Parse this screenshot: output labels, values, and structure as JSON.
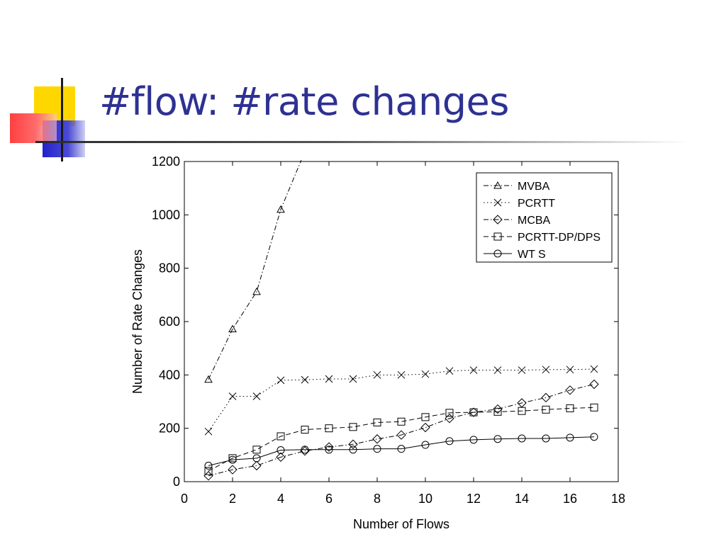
{
  "slide": {
    "title": "#flow: #rate changes",
    "colors": {
      "title": "#2e3192",
      "deco_yellow": "#ffd700",
      "deco_blue": "#3333cc",
      "deco_red": "#ff3333"
    }
  },
  "chart_data": {
    "type": "line",
    "title": "",
    "xlabel": "Number of Flows",
    "ylabel": "Number of Rate Changes",
    "xlim": [
      0,
      18
    ],
    "ylim": [
      0,
      1200
    ],
    "xticks": [
      0,
      2,
      4,
      6,
      8,
      10,
      12,
      14,
      16,
      18
    ],
    "yticks": [
      0,
      200,
      400,
      600,
      800,
      1000,
      1200
    ],
    "grid": false,
    "legend_position": "top-right",
    "series": [
      {
        "name": "MVBA",
        "marker": "triangle",
        "dash": "dashdot",
        "x": [
          1,
          2,
          3,
          4,
          4.85
        ],
        "y": [
          383,
          572,
          712,
          1020,
          1205
        ]
      },
      {
        "name": "PCRTT",
        "marker": "x",
        "dash": "dotted",
        "x": [
          1,
          2,
          3,
          4,
          5,
          6,
          7,
          8,
          9,
          10,
          11,
          12,
          13,
          14,
          15,
          16,
          17
        ],
        "y": [
          188,
          320,
          320,
          380,
          382,
          385,
          385,
          400,
          400,
          403,
          415,
          418,
          418,
          418,
          420,
          420,
          422
        ]
      },
      {
        "name": "MCBA",
        "marker": "diamond",
        "dash": "dashdot",
        "x": [
          1,
          2,
          3,
          4,
          5,
          6,
          7,
          8,
          9,
          10,
          11,
          12,
          13,
          14,
          15,
          16,
          17
        ],
        "y": [
          22,
          45,
          60,
          92,
          115,
          130,
          140,
          160,
          175,
          203,
          237,
          260,
          272,
          295,
          315,
          343,
          365
        ]
      },
      {
        "name": "PCRTT-DP/DPS",
        "marker": "square",
        "dash": "dashed",
        "x": [
          1,
          2,
          3,
          4,
          5,
          6,
          7,
          8,
          9,
          10,
          11,
          12,
          13,
          14,
          15,
          16,
          17
        ],
        "y": [
          40,
          88,
          120,
          170,
          195,
          200,
          205,
          222,
          225,
          242,
          258,
          260,
          262,
          265,
          270,
          275,
          278
        ]
      },
      {
        "name": "WT S",
        "marker": "circle",
        "dash": "solid",
        "x": [
          1,
          2,
          3,
          4,
          5,
          6,
          7,
          8,
          9,
          10,
          11,
          12,
          13,
          14,
          15,
          16,
          17
        ],
        "y": [
          60,
          82,
          88,
          118,
          120,
          120,
          120,
          123,
          123,
          138,
          152,
          157,
          160,
          162,
          162,
          165,
          168
        ]
      }
    ]
  }
}
